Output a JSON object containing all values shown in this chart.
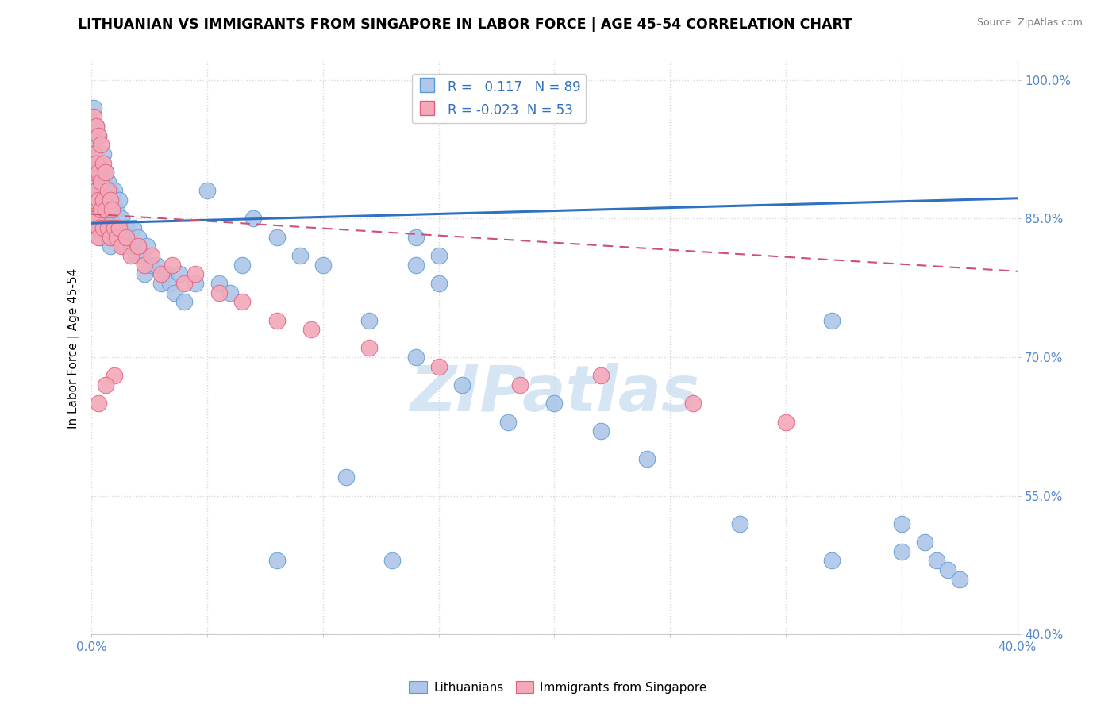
{
  "title": "LITHUANIAN VS IMMIGRANTS FROM SINGAPORE IN LABOR FORCE | AGE 45-54 CORRELATION CHART",
  "source": "Source: ZipAtlas.com",
  "ylabel": "In Labor Force | Age 45-54",
  "xlim": [
    0.0,
    0.4
  ],
  "ylim": [
    0.4,
    1.02
  ],
  "xticks": [
    0.0,
    0.05,
    0.1,
    0.15,
    0.2,
    0.25,
    0.3,
    0.35,
    0.4
  ],
  "yticks": [
    0.4,
    0.55,
    0.7,
    0.85,
    1.0
  ],
  "blue_R": 0.117,
  "blue_N": 89,
  "pink_R": -0.023,
  "pink_N": 53,
  "blue_color": "#aec6e8",
  "pink_color": "#f4a8b8",
  "blue_edge_color": "#5b9bd5",
  "pink_edge_color": "#e06080",
  "blue_line_color": "#3070c0",
  "pink_line_color": "#d05070",
  "background_color": "#ffffff",
  "grid_color": "#d8d8d8",
  "watermark_color": "#c5daf0",
  "axis_label_color": "#5588cc",
  "title_color": "#000000",
  "title_fontsize": 12.5,
  "blue_trend_x0": 0.0,
  "blue_trend_y0": 0.845,
  "blue_trend_x1": 0.4,
  "blue_trend_y1": 0.872,
  "pink_trend_x0": 0.0,
  "pink_trend_y0": 0.855,
  "pink_trend_x1": 0.4,
  "pink_trend_y1": 0.793,
  "blue_scatter_x": [
    0.001,
    0.001,
    0.001,
    0.001,
    0.002,
    0.002,
    0.002,
    0.002,
    0.002,
    0.003,
    0.003,
    0.003,
    0.003,
    0.003,
    0.004,
    0.004,
    0.004,
    0.004,
    0.005,
    0.005,
    0.005,
    0.005,
    0.006,
    0.006,
    0.006,
    0.007,
    0.007,
    0.007,
    0.008,
    0.008,
    0.008,
    0.009,
    0.009,
    0.01,
    0.01,
    0.011,
    0.012,
    0.012,
    0.013,
    0.014,
    0.015,
    0.016,
    0.017,
    0.018,
    0.019,
    0.02,
    0.022,
    0.023,
    0.024,
    0.026,
    0.028,
    0.03,
    0.032,
    0.034,
    0.036,
    0.038,
    0.04,
    0.045,
    0.05,
    0.055,
    0.06,
    0.065,
    0.07,
    0.08,
    0.09,
    0.1,
    0.12,
    0.14,
    0.16,
    0.18,
    0.14,
    0.15,
    0.14,
    0.15,
    0.2,
    0.22,
    0.24,
    0.28,
    0.32,
    0.35,
    0.35,
    0.36,
    0.365,
    0.37,
    0.375,
    0.13,
    0.32,
    0.08,
    0.11
  ],
  "blue_scatter_y": [
    0.93,
    0.91,
    0.88,
    0.97,
    0.92,
    0.89,
    0.87,
    0.95,
    0.86,
    0.91,
    0.88,
    0.86,
    0.94,
    0.84,
    0.9,
    0.87,
    0.85,
    0.83,
    0.92,
    0.89,
    0.86,
    0.84,
    0.9,
    0.87,
    0.84,
    0.89,
    0.86,
    0.83,
    0.88,
    0.85,
    0.82,
    0.87,
    0.84,
    0.88,
    0.83,
    0.86,
    0.87,
    0.83,
    0.85,
    0.82,
    0.84,
    0.83,
    0.82,
    0.84,
    0.81,
    0.83,
    0.81,
    0.79,
    0.82,
    0.8,
    0.8,
    0.78,
    0.79,
    0.78,
    0.77,
    0.79,
    0.76,
    0.78,
    0.88,
    0.78,
    0.77,
    0.8,
    0.85,
    0.83,
    0.81,
    0.8,
    0.74,
    0.7,
    0.67,
    0.63,
    0.8,
    0.78,
    0.83,
    0.81,
    0.65,
    0.62,
    0.59,
    0.52,
    0.48,
    0.52,
    0.49,
    0.5,
    0.48,
    0.47,
    0.46,
    0.48,
    0.74,
    0.48,
    0.57
  ],
  "pink_scatter_x": [
    0.001,
    0.001,
    0.001,
    0.001,
    0.001,
    0.002,
    0.002,
    0.002,
    0.002,
    0.003,
    0.003,
    0.003,
    0.003,
    0.003,
    0.004,
    0.004,
    0.004,
    0.005,
    0.005,
    0.005,
    0.006,
    0.006,
    0.007,
    0.007,
    0.008,
    0.008,
    0.009,
    0.01,
    0.011,
    0.012,
    0.013,
    0.015,
    0.017,
    0.02,
    0.023,
    0.026,
    0.03,
    0.035,
    0.04,
    0.045,
    0.055,
    0.065,
    0.08,
    0.095,
    0.12,
    0.15,
    0.185,
    0.22,
    0.26,
    0.3,
    0.01,
    0.006,
    0.003
  ],
  "pink_scatter_y": [
    0.96,
    0.92,
    0.9,
    0.87,
    0.85,
    0.95,
    0.91,
    0.88,
    0.85,
    0.94,
    0.9,
    0.87,
    0.84,
    0.83,
    0.93,
    0.89,
    0.86,
    0.91,
    0.87,
    0.84,
    0.9,
    0.86,
    0.88,
    0.84,
    0.87,
    0.83,
    0.86,
    0.84,
    0.83,
    0.84,
    0.82,
    0.83,
    0.81,
    0.82,
    0.8,
    0.81,
    0.79,
    0.8,
    0.78,
    0.79,
    0.77,
    0.76,
    0.74,
    0.73,
    0.71,
    0.69,
    0.67,
    0.68,
    0.65,
    0.63,
    0.68,
    0.67,
    0.65
  ]
}
